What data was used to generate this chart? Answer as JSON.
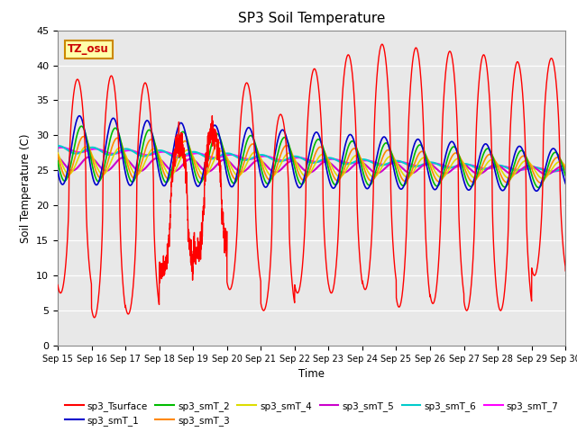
{
  "title": "SP3 Soil Temperature",
  "xlabel": "Time",
  "ylabel": "Soil Temperature (C)",
  "ylim": [
    0,
    45
  ],
  "annotation": "TZ_osu",
  "plot_bg_color": "#e8e8e8",
  "series_colors": {
    "sp3_Tsurface": "#ff0000",
    "sp3_smT_1": "#0000cc",
    "sp3_smT_2": "#00bb00",
    "sp3_smT_3": "#ff8800",
    "sp3_smT_4": "#dddd00",
    "sp3_smT_5": "#cc00cc",
    "sp3_smT_6": "#00cccc",
    "sp3_smT_7": "#ff00ff"
  },
  "legend_labels": [
    "sp3_Tsurface",
    "sp3_smT_1",
    "sp3_smT_2",
    "sp3_smT_3",
    "sp3_smT_4",
    "sp3_smT_5",
    "sp3_smT_6",
    "sp3_smT_7"
  ],
  "xtick_labels": [
    "Sep 15",
    "Sep 16",
    "Sep 17",
    "Sep 18",
    "Sep 19",
    "Sep 20",
    "Sep 21",
    "Sep 22",
    "Sep 23",
    "Sep 24",
    "Sep 25",
    "Sep 26",
    "Sep 27",
    "Sep 28",
    "Sep 29",
    "Sep 30"
  ],
  "ytick_values": [
    0,
    5,
    10,
    15,
    20,
    25,
    30,
    35,
    40,
    45
  ],
  "surface_peaks": [
    38.0,
    38.5,
    37.5,
    29.0,
    30.5,
    37.5,
    33.0,
    39.5,
    41.5,
    43.0,
    42.5,
    42.0,
    41.5,
    40.5,
    41.0,
    40.5
  ],
  "surface_troughs": [
    7.5,
    4.0,
    4.5,
    10.5,
    13.0,
    8.0,
    5.0,
    7.5,
    7.5,
    8.0,
    5.5,
    6.0,
    5.0,
    5.0,
    10.0,
    9.5
  ],
  "peak_hour": 14,
  "trough_hour": 6,
  "depth_mean_start": [
    28.0,
    27.5,
    27.0,
    26.5,
    26.0,
    28.0,
    28.0
  ],
  "depth_mean_end": [
    25.0,
    25.0,
    25.0,
    25.0,
    25.0,
    25.0,
    25.0
  ],
  "depth_amp_start": [
    5.0,
    4.0,
    3.0,
    2.0,
    1.0,
    0.5,
    0.3
  ],
  "depth_amp_end": [
    3.0,
    2.5,
    1.8,
    1.2,
    0.6,
    0.3,
    0.2
  ],
  "depth_phase_lag": [
    0.06,
    0.12,
    0.18,
    0.25,
    0.35,
    0.45,
    0.55
  ]
}
